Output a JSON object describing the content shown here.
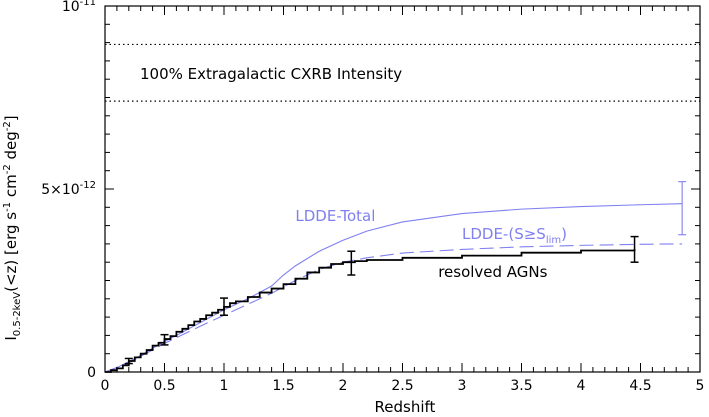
{
  "chart_data": {
    "type": "line",
    "xlabel": "Redshift",
    "ylabel_parts": {
      "main": "I",
      "sub": "0.5-2keV",
      "rest": "(<z)  [erg s",
      "sup1": "-1",
      "mid": " cm",
      "sup2": "-2",
      "mid2": " deg",
      "sup3": "-2",
      "end": "]"
    },
    "xlim": [
      0,
      5
    ],
    "ylim": [
      0,
      1e-11
    ],
    "x_ticks": [
      0,
      0.5,
      1,
      1.5,
      2,
      2.5,
      3,
      3.5,
      4,
      4.5,
      5
    ],
    "x_tick_labels": [
      "0",
      "0.5",
      "1",
      "1.5",
      "2",
      "2.5",
      "3",
      "3.5",
      "4",
      "4.5",
      "5"
    ],
    "y_tick_labels": [
      {
        "value": 0,
        "text": "0"
      },
      {
        "value": 5e-12,
        "mant": "5×10",
        "exp": "-12"
      },
      {
        "value": 1e-11,
        "mant": "10",
        "exp": "-11"
      }
    ],
    "band": {
      "label": "100% Extragalactic CXRB Intensity",
      "lower": 7.4e-12,
      "upper": 8.95e-12
    },
    "series": [
      {
        "name": "LDDE-Total",
        "color": "#8080f0",
        "style": "solid",
        "x": [
          0,
          0.1,
          0.2,
          0.3,
          0.4,
          0.5,
          0.6,
          0.8,
          1.0,
          1.2,
          1.4,
          1.5,
          1.6,
          1.8,
          2.0,
          2.2,
          2.5,
          3.0,
          3.5,
          4.0,
          4.5,
          4.85
        ],
        "y": [
          0,
          1.2e-13,
          2.8e-13,
          4.5e-13,
          6.5e-13,
          8.3e-13,
          1e-12,
          1.35e-12,
          1.7e-12,
          2e-12,
          2.35e-12,
          2.65e-12,
          2.9e-12,
          3.3e-12,
          3.6e-12,
          3.85e-12,
          4.1e-12,
          4.33e-12,
          4.45e-12,
          4.52e-12,
          4.57e-12,
          4.6e-12
        ]
      },
      {
        "name": "LDDE-(S≥S",
        "name_sub": "lim",
        "name_end": ")",
        "color": "#8080f0",
        "style": "dashed",
        "x": [
          0,
          0.2,
          0.5,
          0.8,
          1.0,
          1.2,
          1.4,
          1.6,
          1.8,
          2.0,
          2.2,
          2.5,
          3.0,
          3.5,
          4.0,
          4.5,
          4.85
        ],
        "y": [
          0,
          2.5e-13,
          7.8e-13,
          1.25e-12,
          1.55e-12,
          1.85e-12,
          2.15e-12,
          2.5e-12,
          2.8e-12,
          3e-12,
          3.12e-12,
          3.25e-12,
          3.35e-12,
          3.42e-12,
          3.46e-12,
          3.49e-12,
          3.5e-12
        ]
      },
      {
        "name": "resolved AGNs",
        "color": "#000000",
        "style": "step",
        "x": [
          0,
          0.05,
          0.1,
          0.15,
          0.2,
          0.25,
          0.3,
          0.35,
          0.4,
          0.45,
          0.5,
          0.55,
          0.6,
          0.65,
          0.7,
          0.75,
          0.8,
          0.85,
          0.9,
          0.95,
          1.0,
          1.05,
          1.1,
          1.2,
          1.3,
          1.4,
          1.5,
          1.6,
          1.7,
          1.8,
          1.9,
          2.0,
          2.1,
          2.2,
          2.5,
          3.0,
          3.5,
          4.0,
          4.45
        ],
        "y": [
          0,
          5e-14,
          1e-13,
          1.8e-13,
          3e-13,
          4e-13,
          5e-13,
          6e-13,
          7.2e-13,
          8e-13,
          9e-13,
          9.8e-13,
          1.1e-12,
          1.18e-12,
          1.28e-12,
          1.38e-12,
          1.45e-12,
          1.55e-12,
          1.62e-12,
          1.7e-12,
          1.78e-12,
          1.88e-12,
          1.93e-12,
          2.05e-12,
          2.17e-12,
          2.28e-12,
          2.4e-12,
          2.55e-12,
          2.72e-12,
          2.85e-12,
          2.95e-12,
          3e-12,
          3.03e-12,
          3.06e-12,
          3.12e-12,
          3.18e-12,
          3.26e-12,
          3.32e-12,
          3.36e-12
        ]
      }
    ],
    "error_bars": [
      {
        "x": 0.2,
        "y": 3e-13,
        "lo": 2.3e-13,
        "hi": 3.7e-13,
        "color": "#000000"
      },
      {
        "x": 0.5,
        "y": 8.8e-13,
        "lo": 7.4e-13,
        "hi": 1.02e-12,
        "color": "#000000"
      },
      {
        "x": 1.0,
        "y": 1.78e-12,
        "lo": 1.55e-12,
        "hi": 2.02e-12,
        "color": "#000000"
      },
      {
        "x": 2.07,
        "y": 3e-12,
        "lo": 2.65e-12,
        "hi": 3.3e-12,
        "color": "#000000"
      },
      {
        "x": 4.45,
        "y": 3.36e-12,
        "lo": 3e-12,
        "hi": 3.7e-12,
        "color": "#000000"
      },
      {
        "x": 4.85,
        "y": 4.5e-12,
        "lo": 3.75e-12,
        "hi": 5.2e-12,
        "color": "#8080f0"
      }
    ],
    "annotations": [
      {
        "text": "LDDE-Total",
        "x": 1.6,
        "y": 4.12e-12,
        "color": "#8080f0"
      },
      {
        "text": "resolved AGNs",
        "x": 2.8,
        "y": 2.6e-12,
        "color": "#000000"
      }
    ],
    "legend_ldde_s": {
      "x": 3.0,
      "y": 3.63e-12
    }
  }
}
